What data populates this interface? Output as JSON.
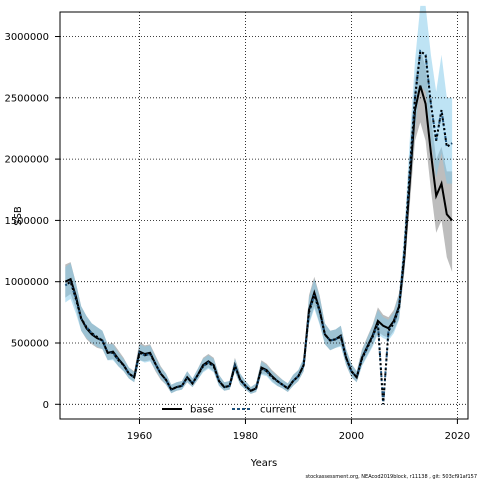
{
  "chart_data": {
    "type": "line",
    "xlabel": "Years",
    "ylabel": "SSB",
    "xlim": [
      1945,
      2022
    ],
    "ylim": [
      -120000,
      3200000
    ],
    "x_ticks": [
      1960,
      1980,
      2000,
      2020
    ],
    "y_ticks": [
      0,
      500000,
      1000000,
      1500000,
      2000000,
      2500000,
      3000000
    ],
    "x_tick_labels": [
      "1960",
      "1980",
      "2000",
      "2020"
    ],
    "y_tick_labels": [
      "0",
      "500000",
      "1000000",
      "1500000",
      "2000000",
      "2500000",
      "3000000"
    ],
    "grid": true,
    "legend_position": "bottom-left",
    "x": [
      1946,
      1947,
      1948,
      1949,
      1950,
      1951,
      1952,
      1953,
      1954,
      1955,
      1956,
      1957,
      1958,
      1959,
      1960,
      1961,
      1962,
      1963,
      1964,
      1965,
      1966,
      1967,
      1968,
      1969,
      1970,
      1971,
      1972,
      1973,
      1974,
      1975,
      1976,
      1977,
      1978,
      1979,
      1980,
      1981,
      1982,
      1983,
      1984,
      1985,
      1986,
      1987,
      1988,
      1989,
      1990,
      1991,
      1992,
      1993,
      1994,
      1995,
      1996,
      1997,
      1998,
      1999,
      2000,
      2001,
      2002,
      2003,
      2004,
      2005,
      2006,
      2007,
      2008,
      2009,
      2010,
      2011,
      2012,
      2013,
      2014,
      2015,
      2016,
      2017,
      2018,
      2019
    ],
    "series": [
      {
        "name": "base",
        "color": "#000000",
        "band_color": "#999999",
        "values": [
          1000000,
          1020000,
          880000,
          700000,
          620000,
          570000,
          540000,
          520000,
          420000,
          430000,
          370000,
          320000,
          250000,
          220000,
          430000,
          410000,
          420000,
          330000,
          250000,
          200000,
          120000,
          140000,
          150000,
          220000,
          170000,
          240000,
          320000,
          350000,
          320000,
          190000,
          140000,
          150000,
          320000,
          200000,
          150000,
          110000,
          130000,
          300000,
          280000,
          230000,
          190000,
          160000,
          130000,
          190000,
          230000,
          320000,
          770000,
          910000,
          770000,
          570000,
          520000,
          530000,
          560000,
          380000,
          270000,
          220000,
          380000,
          470000,
          560000,
          680000,
          640000,
          620000,
          680000,
          800000,
          1200000,
          1800000,
          2400000,
          2600000,
          2450000,
          2050000,
          1700000,
          1800000,
          1550000,
          1500000
        ],
        "lower": [
          870000,
          900000,
          780000,
          600000,
          530000,
          490000,
          460000,
          450000,
          360000,
          370000,
          310000,
          270000,
          210000,
          180000,
          360000,
          350000,
          360000,
          270000,
          200000,
          160000,
          90000,
          110000,
          120000,
          180000,
          140000,
          200000,
          270000,
          300000,
          270000,
          150000,
          110000,
          120000,
          270000,
          160000,
          120000,
          85000,
          100000,
          250000,
          240000,
          190000,
          150000,
          130000,
          100000,
          150000,
          190000,
          270000,
          660000,
          800000,
          660000,
          490000,
          440000,
          460000,
          480000,
          320000,
          220000,
          180000,
          320000,
          400000,
          480000,
          590000,
          560000,
          540000,
          600000,
          700000,
          1080000,
          1620000,
          2150000,
          2300000,
          2150000,
          1750000,
          1400000,
          1500000,
          1200000,
          1080000
        ],
        "upper": [
          1140000,
          1160000,
          990000,
          800000,
          720000,
          660000,
          630000,
          600000,
          490000,
          500000,
          440000,
          380000,
          300000,
          270000,
          510000,
          480000,
          490000,
          400000,
          310000,
          250000,
          160000,
          180000,
          190000,
          270000,
          210000,
          290000,
          380000,
          410000,
          380000,
          240000,
          180000,
          190000,
          380000,
          250000,
          190000,
          140000,
          170000,
          360000,
          330000,
          280000,
          240000,
          200000,
          170000,
          240000,
          280000,
          380000,
          890000,
          1040000,
          890000,
          660000,
          600000,
          610000,
          640000,
          450000,
          330000,
          270000,
          450000,
          550000,
          650000,
          790000,
          730000,
          710000,
          770000,
          910000,
          1330000,
          2000000,
          2650000,
          2900000,
          2750000,
          2350000,
          2000000,
          2100000,
          1900000,
          1900000
        ]
      },
      {
        "name": "current",
        "color": "#1a4f7a",
        "band_color": "#7ec8ea",
        "values": [
          970000,
          1000000,
          860000,
          700000,
          630000,
          580000,
          550000,
          520000,
          420000,
          420000,
          360000,
          320000,
          250000,
          220000,
          420000,
          400000,
          410000,
          330000,
          250000,
          200000,
          120000,
          140000,
          150000,
          220000,
          170000,
          240000,
          310000,
          340000,
          310000,
          190000,
          140000,
          150000,
          310000,
          200000,
          150000,
          110000,
          130000,
          290000,
          270000,
          220000,
          190000,
          160000,
          130000,
          190000,
          230000,
          320000,
          750000,
          890000,
          760000,
          570000,
          520000,
          530000,
          550000,
          380000,
          270000,
          220000,
          370000,
          460000,
          550000,
          660000,
          620,
          600000,
          660000,
          790000,
          1250000,
          1900000,
          2500000,
          2880000,
          2850000,
          2450000,
          2150000,
          2400000,
          2100000,
          2130000
        ],
        "lower": [
          830000,
          860000,
          740000,
          600000,
          540000,
          500000,
          470000,
          450000,
          360000,
          360000,
          310000,
          270000,
          210000,
          180000,
          360000,
          340000,
          350000,
          280000,
          210000,
          160000,
          90000,
          110000,
          120000,
          180000,
          140000,
          200000,
          260000,
          290000,
          260000,
          150000,
          110000,
          120000,
          260000,
          160000,
          120000,
          85000,
          100000,
          240000,
          230000,
          180000,
          150000,
          130000,
          100000,
          150000,
          190000,
          270000,
          650000,
          780000,
          650000,
          490000,
          440000,
          460000,
          470000,
          320000,
          220000,
          180000,
          310000,
          390000,
          470000,
          570000,
          540000,
          520000,
          580000,
          690000,
          1100000,
          1700000,
          2250000,
          2600000,
          2550000,
          2150000,
          1850000,
          2050000,
          1800000,
          1800000
        ],
        "upper": [
          1120000,
          1150000,
          990000,
          800000,
          720000,
          660000,
          630000,
          600000,
          490000,
          490000,
          420000,
          370000,
          300000,
          260000,
          490000,
          470000,
          480000,
          390000,
          300000,
          250000,
          160000,
          180000,
          190000,
          270000,
          210000,
          290000,
          370000,
          400000,
          370000,
          240000,
          180000,
          190000,
          370000,
          250000,
          190000,
          140000,
          170000,
          350000,
          320000,
          270000,
          230000,
          200000,
          170000,
          240000,
          280000,
          380000,
          870000,
          1020000,
          880000,
          660000,
          600000,
          610000,
          640000,
          450000,
          330000,
          270000,
          440000,
          540000,
          640000,
          770000,
          710000,
          690000,
          750000,
          900000,
          1420000,
          2150000,
          2800000,
          3250000,
          3250000,
          2850000,
          2550000,
          2850000,
          2500000,
          2500000
        ]
      }
    ]
  },
  "footnote": "stockassessment.org, NEAcod2019block, r11138 , git: 503cf91af157"
}
